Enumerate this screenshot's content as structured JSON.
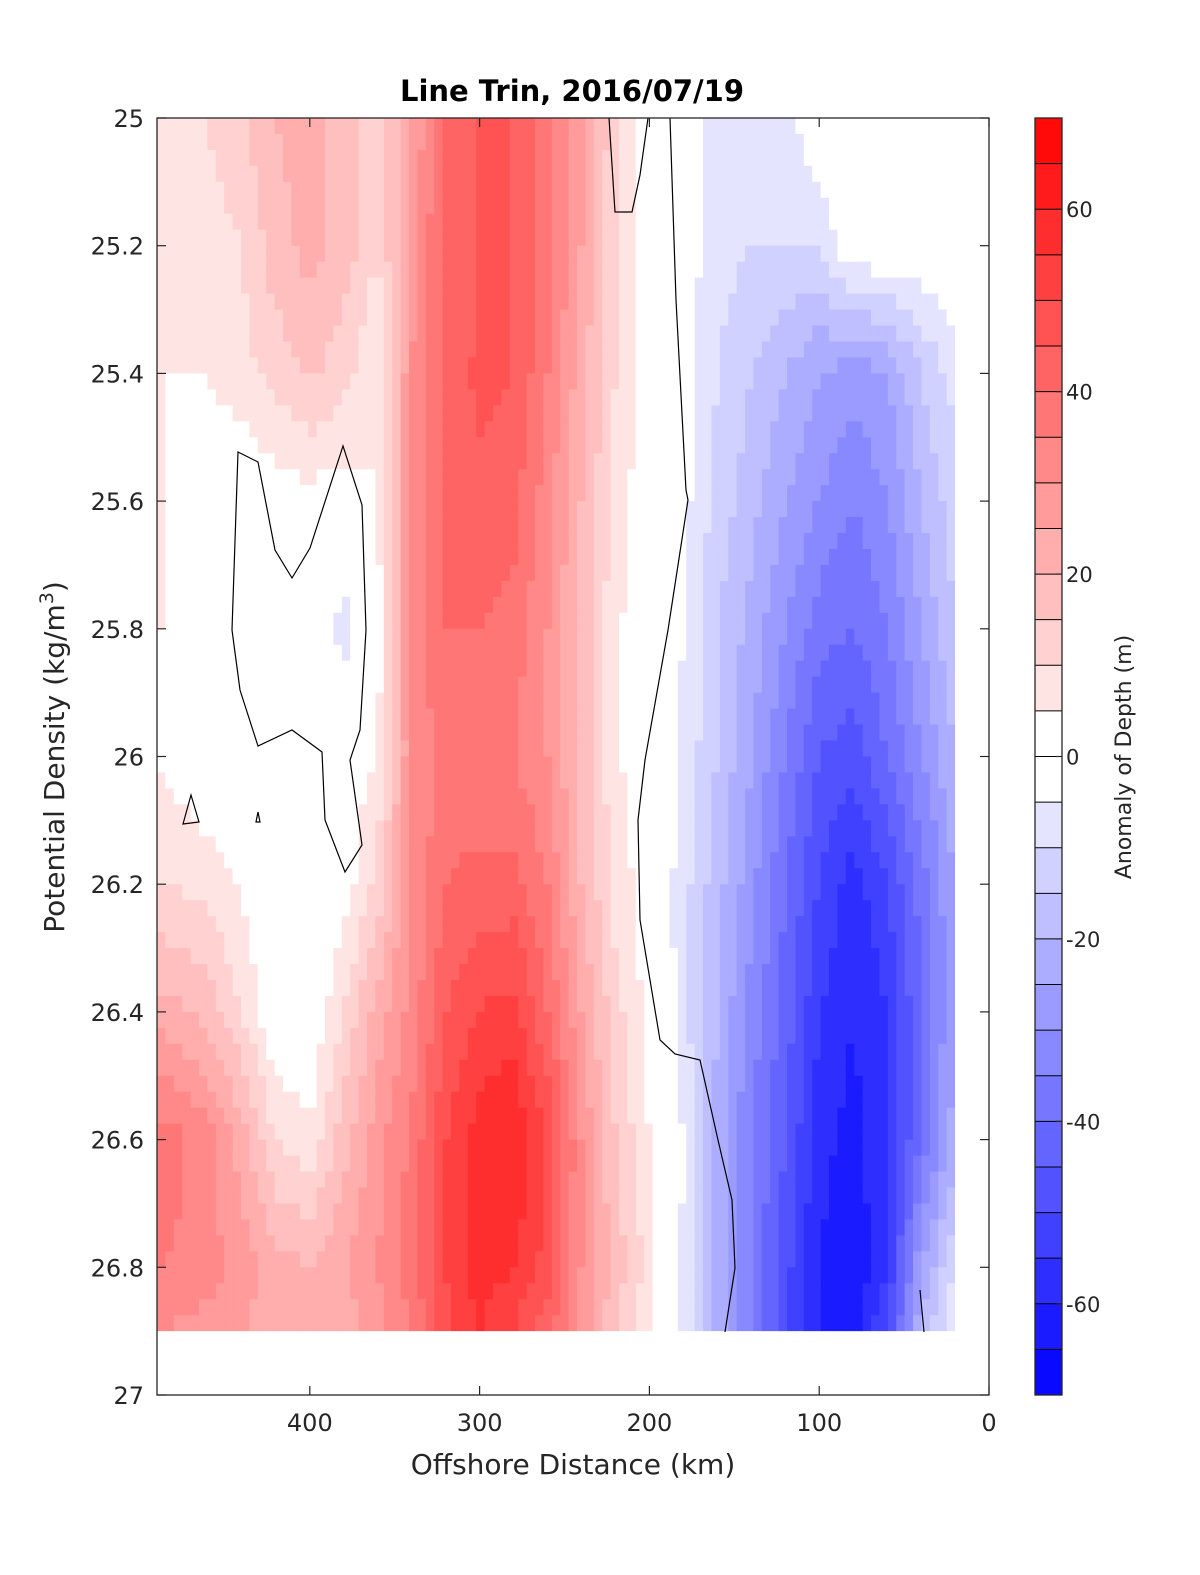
{
  "chart_data": {
    "type": "heatmap",
    "title": "Line Trin, 2016/07/19",
    "xlabel": "Offshore Distance (km)",
    "ylabel_main": "Potential Density (kg/m",
    "ylabel_sup": "3",
    "ylabel_close": ")",
    "colorbar_label": "Anomaly of Depth (m)",
    "xlim": [
      490,
      0
    ],
    "ylim": [
      25,
      27
    ],
    "y_reversed": true,
    "x_reversed": true,
    "xticks": [
      400,
      300,
      200,
      100,
      0
    ],
    "xtick_labels": [
      "400",
      "300",
      "200",
      "100",
      "0"
    ],
    "yticks": [
      25,
      25.2,
      25.4,
      25.6,
      25.8,
      26,
      26.2,
      26.4,
      26.6,
      26.8,
      27
    ],
    "ytick_labels": [
      "25",
      "25.2",
      "25.4",
      "25.6",
      "25.8",
      "26",
      "26.2",
      "26.4",
      "26.6",
      "26.8",
      "27"
    ],
    "colorbar_range": [
      -70,
      70
    ],
    "colorbar_step": 5,
    "colorbar_ticks": [
      -60,
      -40,
      -20,
      0,
      20,
      40,
      60
    ],
    "colorbar_tick_labels": [
      "-60",
      "-40",
      "-20",
      "0",
      "20",
      "40",
      "60"
    ],
    "colormap": {
      "negative": "#0000ff",
      "zero": "#ffffff",
      "positive": "#ff0000"
    },
    "grid": false,
    "data_extent": {
      "x": [
        490,
        20
      ],
      "y": [
        25,
        26.9
      ]
    },
    "anomaly_grid": {
      "x": [
        485,
        460,
        440,
        420,
        400,
        380,
        360,
        340,
        320,
        300,
        280,
        260,
        240,
        220,
        200,
        180,
        160,
        140,
        120,
        100,
        80,
        60,
        40,
        20
      ],
      "y": [
        25.0,
        25.2,
        25.4,
        25.6,
        25.8,
        26.0,
        26.2,
        26.4,
        26.6,
        26.8,
        26.9
      ],
      "values": [
        [
          8,
          10,
          14,
          20,
          22,
          18,
          12,
          25,
          40,
          45,
          45,
          38,
          25,
          12,
          2,
          -2,
          -8,
          -8,
          -8,
          0,
          0,
          0,
          0,
          0
        ],
        [
          5,
          8,
          10,
          18,
          22,
          18,
          10,
          28,
          42,
          45,
          45,
          38,
          25,
          10,
          2,
          -2,
          -8,
          -10,
          -10,
          -10,
          0,
          0,
          0,
          0
        ],
        [
          5,
          5,
          8,
          12,
          16,
          12,
          5,
          30,
          42,
          46,
          45,
          35,
          22,
          10,
          2,
          -2,
          -10,
          -15,
          -20,
          -25,
          -28,
          -25,
          -15,
          -8
        ],
        [
          5,
          2,
          0,
          2,
          3,
          2,
          5,
          32,
          42,
          44,
          42,
          32,
          20,
          8,
          1,
          -3,
          -12,
          -18,
          -25,
          -30,
          -35,
          -30,
          -20,
          -12
        ],
        [
          5,
          0,
          0,
          2,
          2,
          -8,
          2,
          32,
          40,
          40,
          38,
          30,
          18,
          6,
          1,
          -5,
          -15,
          -22,
          -30,
          -38,
          -40,
          -35,
          -25,
          -15
        ],
        [
          4,
          0,
          0,
          0,
          0,
          2,
          5,
          30,
          38,
          35,
          35,
          30,
          18,
          6,
          1,
          -6,
          -15,
          -25,
          -35,
          -45,
          -48,
          -40,
          -30,
          -20
        ],
        [
          10,
          8,
          4,
          0,
          0,
          2,
          12,
          30,
          40,
          42,
          42,
          35,
          20,
          8,
          2,
          -8,
          -18,
          -28,
          -40,
          -50,
          -58,
          -50,
          -38,
          -25
        ],
        [
          22,
          18,
          10,
          0,
          0,
          10,
          22,
          32,
          45,
          50,
          52,
          40,
          25,
          12,
          3,
          -8,
          -20,
          -32,
          -42,
          -55,
          -60,
          -55,
          -40,
          -25
        ],
        [
          38,
          32,
          22,
          10,
          6,
          18,
          28,
          36,
          50,
          58,
          60,
          50,
          30,
          15,
          5,
          -5,
          -22,
          -35,
          -45,
          -58,
          -62,
          -55,
          -40,
          -22
        ],
        [
          35,
          32,
          28,
          22,
          20,
          25,
          30,
          38,
          50,
          58,
          55,
          48,
          30,
          18,
          8,
          -6,
          -22,
          -35,
          -48,
          -60,
          -65,
          -55,
          -25,
          -10
        ],
        [
          30,
          28,
          25,
          22,
          20,
          22,
          28,
          35,
          48,
          55,
          50,
          42,
          28,
          15,
          6,
          -6,
          -22,
          -35,
          -48,
          -60,
          -62,
          -50,
          -20,
          -5
        ]
      ]
    }
  }
}
